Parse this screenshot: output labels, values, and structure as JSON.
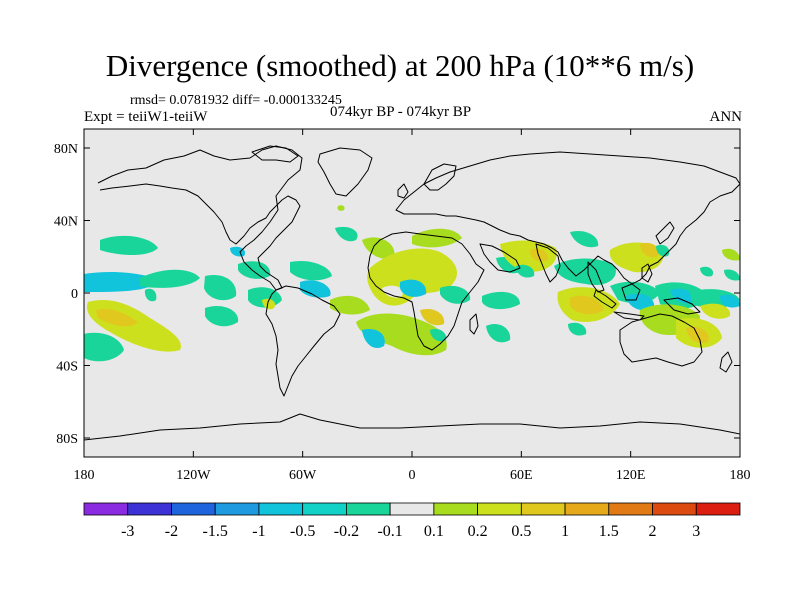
{
  "title": "Divergence (smoothed) at 200 hPa (10**6 m/s)",
  "stats_line": "rmsd= 0.0781932  diff= -0.000133245",
  "experiment_label": "Expt = teiiW1-teiiW",
  "period_label": "074kyr BP - 074kyr BP",
  "season_label": "ANN",
  "lat_ticks": [
    "80N",
    "40N",
    "0",
    "40S",
    "80S"
  ],
  "lon_ticks": [
    "180",
    "120W",
    "60W",
    "0",
    "60E",
    "120E",
    "180"
  ],
  "colorbar": {
    "colors": [
      "#8a2be2",
      "#3c32d6",
      "#1e64dc",
      "#1e9be0",
      "#12c3dc",
      "#12d2c8",
      "#1ad59a",
      "#e8e8e8",
      "#a8dc1e",
      "#cde01e",
      "#e1c81e",
      "#e5a91a",
      "#e17a14",
      "#dc4a10",
      "#dc1e10"
    ],
    "labels": [
      "-3",
      "-2",
      "-1.5",
      "-1",
      "-0.5",
      "-0.2",
      "-0.1",
      "0.1",
      "0.2",
      "0.5",
      "1",
      "1.5",
      "2",
      "3"
    ]
  },
  "colors": {
    "background": "#e8e8e8",
    "coast": "#000000"
  }
}
